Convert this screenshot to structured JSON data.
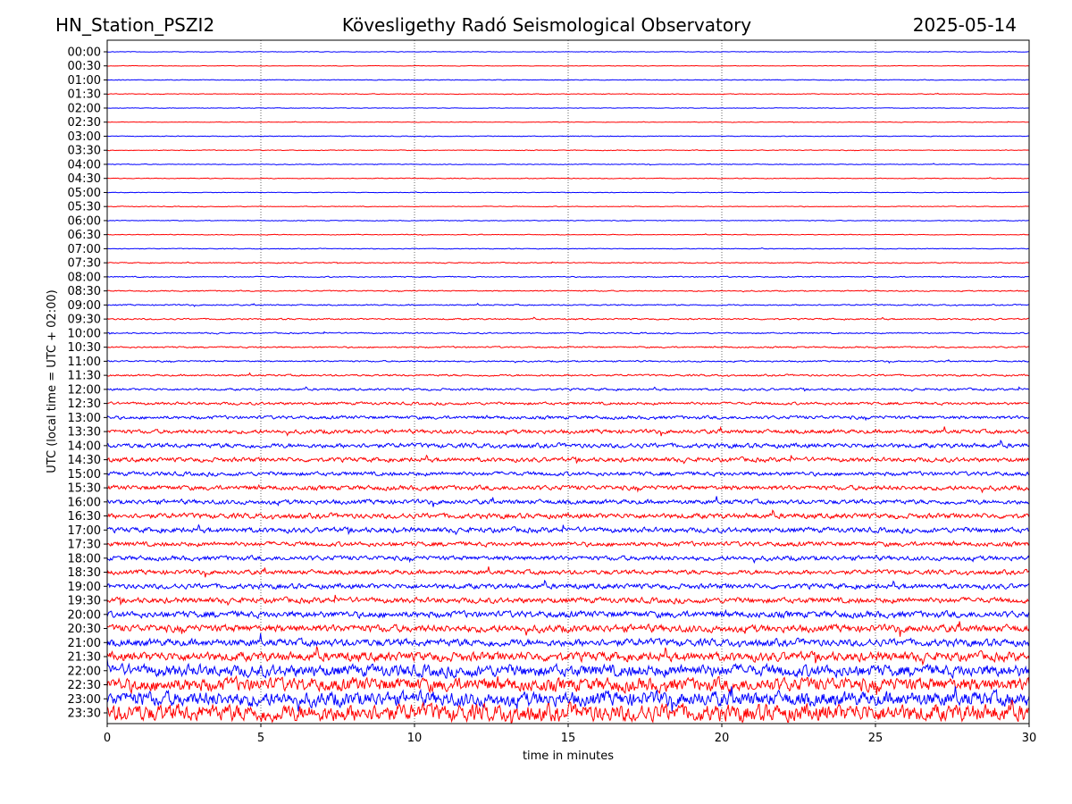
{
  "header": {
    "station": "HN_Station_PSZI2",
    "observatory": "Kövesligethy Radó Seismological Observatory",
    "date": "2025-05-14"
  },
  "chart_data": {
    "type": "line",
    "title": "Kövesligethy Radó Seismological Observatory",
    "xlabel": "time in minutes",
    "ylabel": "UTC (local time = UTC + 02:00)",
    "xlim": [
      0,
      30
    ],
    "x_ticks": [
      "0",
      "5",
      "10",
      "15",
      "20",
      "25",
      "30"
    ],
    "x_tick_values": [
      0,
      5,
      10,
      15,
      20,
      25,
      30
    ],
    "grid": "vertical dotted at each x tick",
    "series_colors": [
      "#0000ff",
      "#ff0000"
    ],
    "rows": [
      "00:00",
      "00:30",
      "01:00",
      "01:30",
      "02:00",
      "02:30",
      "03:00",
      "03:30",
      "04:00",
      "04:30",
      "05:00",
      "05:30",
      "06:00",
      "06:30",
      "07:00",
      "07:30",
      "08:00",
      "08:30",
      "09:00",
      "09:30",
      "10:00",
      "10:30",
      "11:00",
      "11:30",
      "12:00",
      "12:30",
      "13:00",
      "13:30",
      "14:00",
      "14:30",
      "15:00",
      "15:30",
      "16:00",
      "16:30",
      "17:00",
      "17:30",
      "18:00",
      "18:30",
      "19:00",
      "19:30",
      "20:00",
      "20:30",
      "21:00",
      "21:30",
      "22:00",
      "22:30",
      "23:00",
      "23:30"
    ],
    "relative_noise_level": [
      0.3,
      0.3,
      0.4,
      0.4,
      0.3,
      0.3,
      0.4,
      0.4,
      0.4,
      0.4,
      0.3,
      0.4,
      0.4,
      0.4,
      0.4,
      0.5,
      0.6,
      0.6,
      0.7,
      0.8,
      0.7,
      0.8,
      0.8,
      1.0,
      1.2,
      1.5,
      1.8,
      2.2,
      2.5,
      2.4,
      2.2,
      2.5,
      2.5,
      2.8,
      2.8,
      2.5,
      2.5,
      2.5,
      2.8,
      3.0,
      3.5,
      4.0,
      4.0,
      5.0,
      6.5,
      7.5,
      8.0,
      9.5
    ]
  }
}
